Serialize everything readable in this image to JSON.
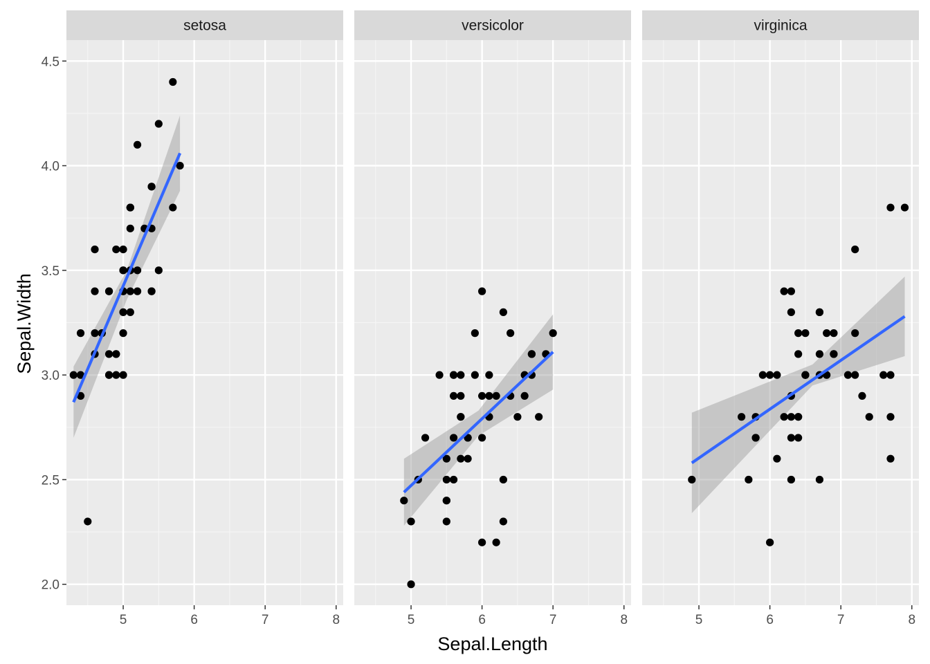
{
  "colors": {
    "panel_bg": "#ebebeb",
    "strip_bg": "#d9d9d9",
    "grid_major": "#ffffff",
    "grid_minor": "#f5f5f5",
    "point": "#000000",
    "fit_line": "#3366ff",
    "ci_band": "#999999",
    "tick_text": "#4d4d4d",
    "tick_mark": "#333333"
  },
  "chart_data": {
    "type": "scatter",
    "faceted": true,
    "xlabel": "Sepal.Length",
    "ylabel": "Sepal.Width",
    "xlim": [
      4.2,
      8.1
    ],
    "ylim": [
      1.9,
      4.6
    ],
    "xticks": [
      5,
      6,
      7,
      8
    ],
    "yticks": [
      2.0,
      2.5,
      3.0,
      3.5,
      4.0,
      4.5
    ],
    "xtick_labels": [
      "5",
      "6",
      "7",
      "8"
    ],
    "ytick_labels": [
      "2.0",
      "2.5",
      "3.0",
      "3.5",
      "4.0",
      "4.5"
    ],
    "grid": true,
    "smooth": "lm with 95% confidence band",
    "facets": [
      {
        "label": "setosa",
        "x": [
          5.1,
          4.9,
          4.7,
          4.6,
          5.0,
          5.4,
          4.6,
          5.0,
          4.4,
          4.9,
          5.4,
          4.8,
          4.8,
          4.3,
          5.8,
          5.7,
          5.4,
          5.1,
          5.7,
          5.1,
          5.4,
          5.1,
          4.6,
          5.1,
          4.8,
          5.0,
          5.0,
          5.2,
          5.2,
          4.7,
          4.8,
          5.4,
          5.2,
          5.5,
          4.9,
          5.0,
          5.5,
          4.9,
          4.4,
          5.1,
          5.0,
          4.5,
          4.4,
          5.0,
          5.1,
          4.8,
          5.1,
          4.6,
          5.3,
          5.0
        ],
        "y": [
          3.5,
          3.0,
          3.2,
          3.1,
          3.6,
          3.9,
          3.4,
          3.4,
          2.9,
          3.1,
          3.7,
          3.4,
          3.0,
          3.0,
          4.0,
          4.4,
          3.9,
          3.5,
          3.8,
          3.8,
          3.4,
          3.7,
          3.6,
          3.3,
          3.4,
          3.0,
          3.4,
          3.5,
          3.4,
          3.2,
          3.1,
          3.4,
          4.1,
          4.2,
          3.1,
          3.2,
          3.5,
          3.6,
          3.0,
          3.4,
          3.5,
          2.3,
          3.2,
          3.5,
          3.8,
          3.0,
          3.8,
          3.2,
          3.7,
          3.3
        ],
        "fit": {
          "x": [
            4.3,
            5.8
          ],
          "y": [
            2.87,
            4.06
          ]
        },
        "band": {
          "x": [
            4.3,
            5.05,
            5.8
          ],
          "lower": [
            2.7,
            3.36,
            3.88
          ],
          "upper": [
            3.04,
            3.5,
            4.24
          ]
        }
      },
      {
        "label": "versicolor",
        "x": [
          7.0,
          6.4,
          6.9,
          5.5,
          6.5,
          5.7,
          6.3,
          4.9,
          6.6,
          5.2,
          5.0,
          5.9,
          6.0,
          6.1,
          5.6,
          6.7,
          5.6,
          5.8,
          6.2,
          5.6,
          5.9,
          6.1,
          6.3,
          6.1,
          6.4,
          6.6,
          6.8,
          6.7,
          6.0,
          5.7,
          5.5,
          5.5,
          5.8,
          6.0,
          5.4,
          6.0,
          6.7,
          6.3,
          5.6,
          5.5,
          5.5,
          6.1,
          5.8,
          5.0,
          5.6,
          5.7,
          5.7,
          6.2,
          5.1,
          5.7
        ],
        "y": [
          3.2,
          3.2,
          3.1,
          2.3,
          2.8,
          2.8,
          3.3,
          2.4,
          2.9,
          2.7,
          2.0,
          3.0,
          2.2,
          2.9,
          2.9,
          3.1,
          3.0,
          2.7,
          2.2,
          2.5,
          3.2,
          2.8,
          2.5,
          2.8,
          2.9,
          3.0,
          2.8,
          3.0,
          2.9,
          2.6,
          2.4,
          2.4,
          2.7,
          2.7,
          3.0,
          3.4,
          3.1,
          2.3,
          3.0,
          2.5,
          2.6,
          3.0,
          2.6,
          2.3,
          2.7,
          3.0,
          2.9,
          2.9,
          2.5,
          2.8
        ],
        "fit": {
          "x": [
            4.9,
            7.0
          ],
          "y": [
            2.44,
            3.11
          ]
        },
        "band": {
          "x": [
            4.9,
            5.95,
            7.0
          ],
          "lower": [
            2.28,
            2.71,
            2.93
          ],
          "upper": [
            2.6,
            2.83,
            3.29
          ]
        }
      },
      {
        "label": "virginica",
        "x": [
          6.3,
          5.8,
          7.1,
          6.3,
          6.5,
          7.6,
          4.9,
          7.3,
          6.7,
          7.2,
          6.5,
          6.4,
          6.8,
          5.7,
          5.8,
          6.4,
          6.5,
          7.7,
          7.7,
          6.0,
          6.9,
          5.6,
          7.7,
          6.3,
          6.7,
          7.2,
          6.2,
          6.1,
          6.4,
          7.2,
          7.4,
          7.9,
          6.4,
          6.3,
          6.1,
          7.7,
          6.3,
          6.4,
          6.0,
          6.9,
          6.7,
          6.9,
          5.8,
          6.8,
          6.7,
          6.7,
          6.3,
          6.5,
          6.2,
          5.9
        ],
        "y": [
          3.3,
          2.7,
          3.0,
          2.9,
          3.0,
          3.0,
          2.5,
          2.9,
          2.5,
          3.6,
          3.2,
          2.7,
          3.0,
          2.5,
          2.8,
          3.2,
          3.0,
          3.8,
          2.6,
          2.2,
          3.2,
          2.8,
          2.8,
          2.7,
          3.3,
          3.2,
          2.8,
          3.0,
          2.8,
          3.0,
          2.8,
          3.8,
          2.8,
          2.8,
          2.6,
          3.0,
          3.4,
          3.1,
          3.0,
          3.1,
          3.1,
          3.1,
          2.7,
          3.2,
          3.3,
          3.0,
          2.5,
          3.0,
          3.4,
          3.0
        ],
        "fit": {
          "x": [
            4.9,
            7.9
          ],
          "y": [
            2.58,
            3.28
          ]
        },
        "band": {
          "x": [
            4.9,
            6.6,
            7.9
          ],
          "lower": [
            2.34,
            2.95,
            3.09
          ],
          "upper": [
            2.82,
            3.05,
            3.47
          ]
        }
      }
    ]
  }
}
